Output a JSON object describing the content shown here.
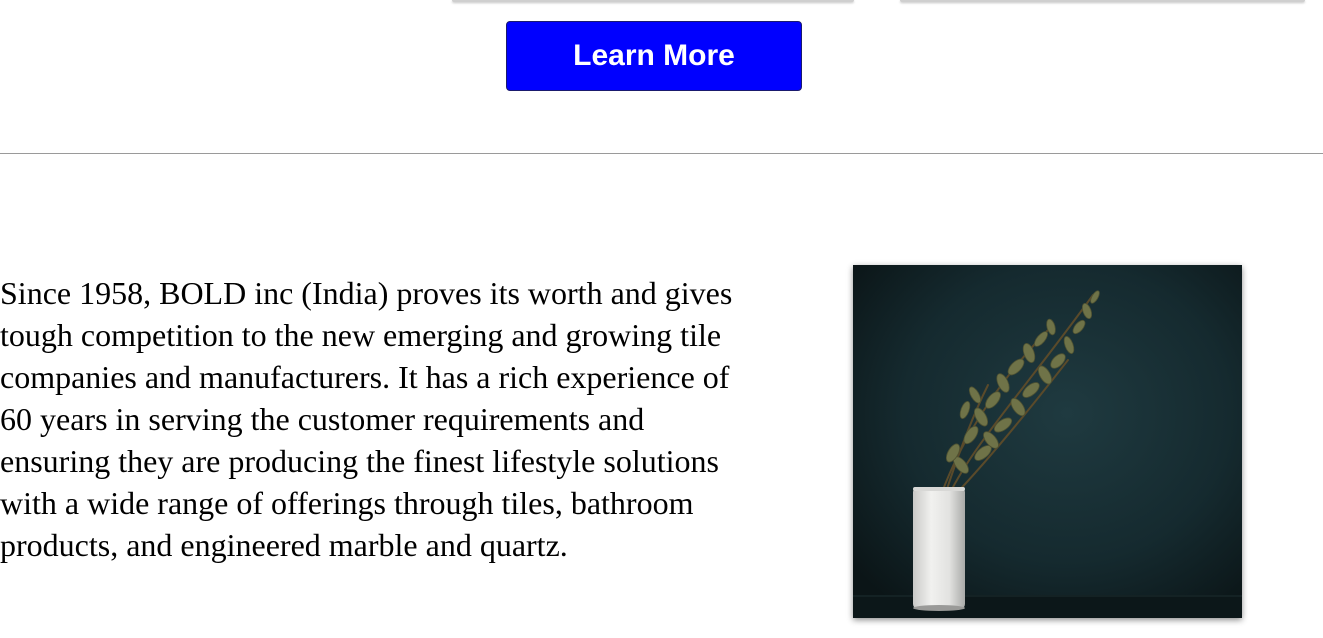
{
  "cta": {
    "learn_more_label": "Learn More"
  },
  "about": {
    "paragraph": "Since 1958, BOLD inc (India) proves its worth and gives tough competition to the new emerging and growing tile companies and manufacturers. It has a rich experience of 60 years in serving the customer requirements and ensuring they are producing the finest lifestyle solutions with a wide range of offerings through tiles, bathroom products, and engineered marble and quartz."
  },
  "photo": {
    "subject": "vase-with-eucalyptus-image"
  },
  "colors": {
    "button_bg": "#0000ff",
    "button_text": "#ffffff",
    "divider": "#9a9a9a",
    "photo_bg": "#16262a"
  }
}
